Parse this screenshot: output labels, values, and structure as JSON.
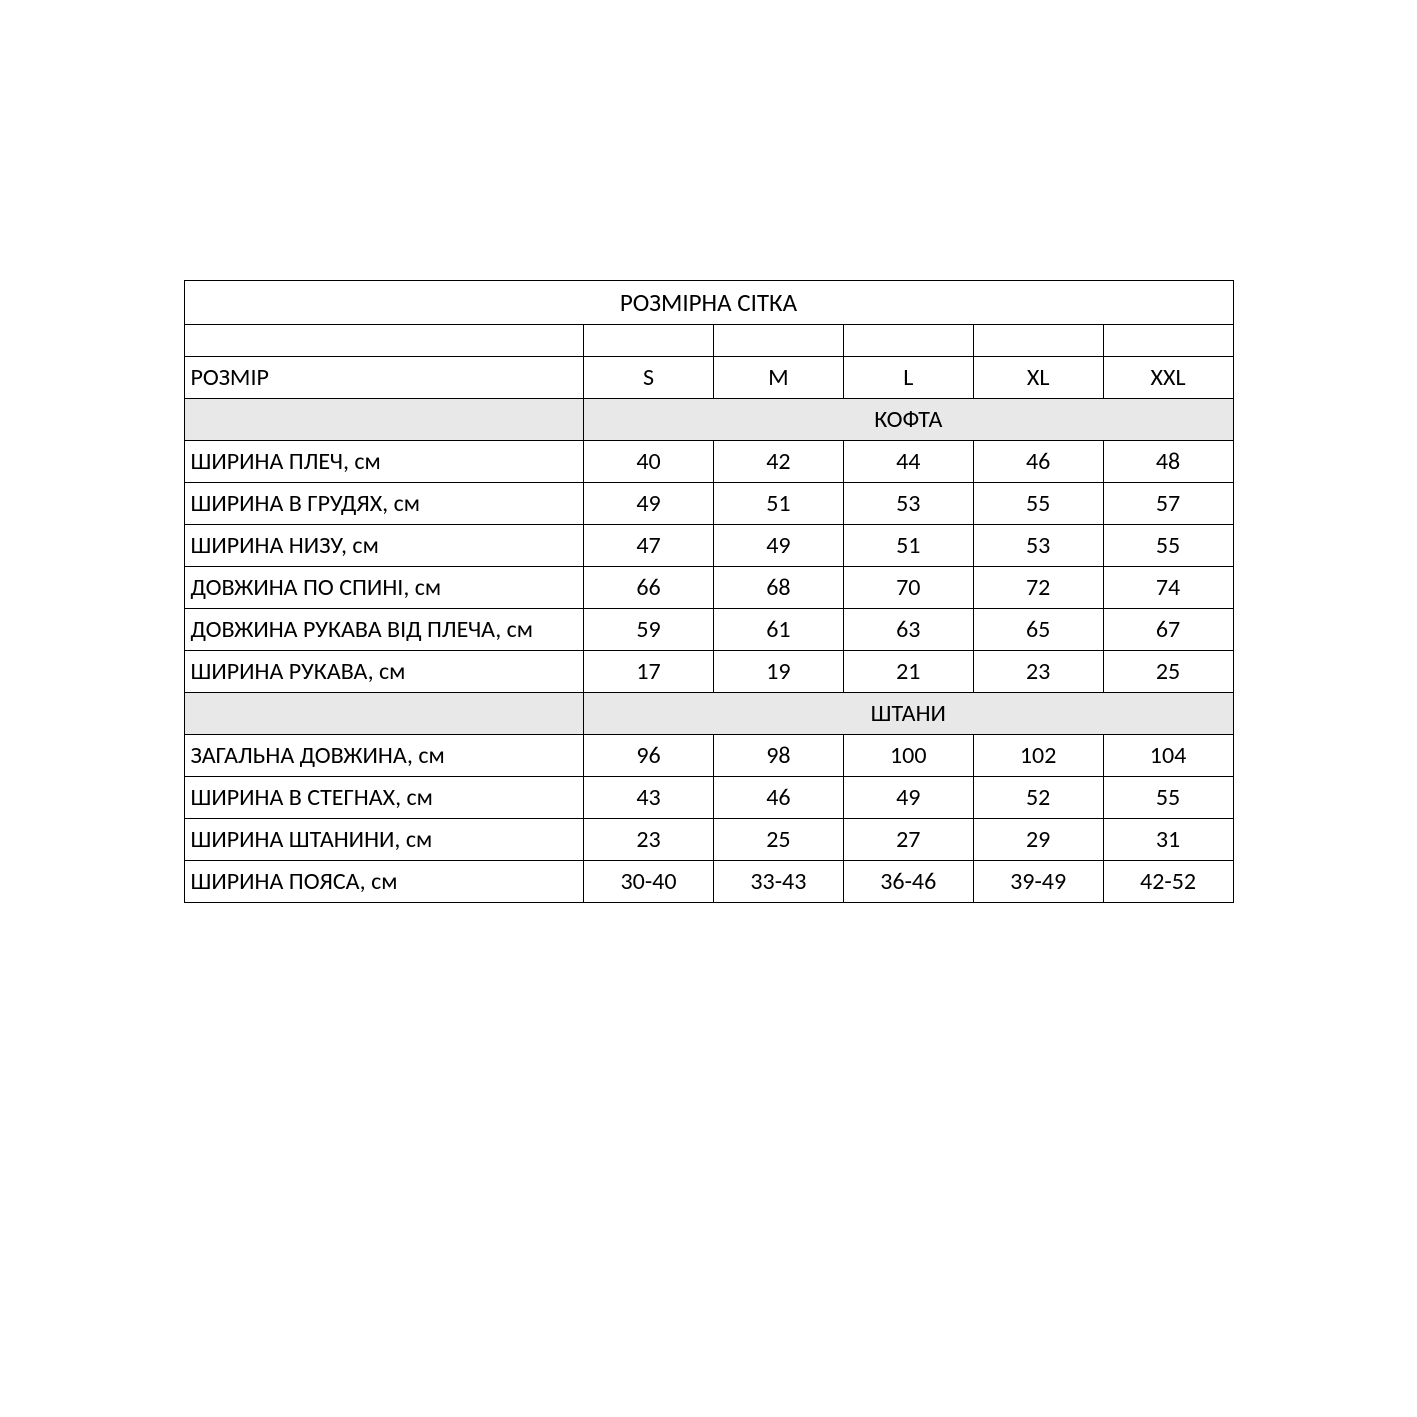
{
  "table": {
    "type": "table",
    "title": "РОЗМІРНА СІТКА",
    "size_label": "РОЗМІР",
    "sizes": [
      "S",
      "M",
      "L",
      "XL",
      "XXL"
    ],
    "sections": [
      {
        "name": "КОФТА",
        "rows": [
          {
            "label": " ШИРИНА ПЛЕЧ, см",
            "values": [
              "40",
              "42",
              "44",
              "46",
              "48"
            ]
          },
          {
            "label": "ШИРИНА В ГРУДЯХ, см",
            "values": [
              "49",
              "51",
              "53",
              "55",
              "57"
            ]
          },
          {
            "label": "ШИРИНА НИЗУ, см",
            "values": [
              "47",
              "49",
              "51",
              "53",
              "55"
            ]
          },
          {
            "label": "ДОВЖИНА ПО СПИНІ, см",
            "values": [
              "66",
              "68",
              "70",
              "72",
              "74"
            ]
          },
          {
            "label": "ДОВЖИНА РУКАВА ВІД ПЛЕЧА, см",
            "values": [
              "59",
              "61",
              "63",
              "65",
              "67"
            ]
          },
          {
            "label": "ШИРИНА РУКАВА, см",
            "values": [
              "17",
              "19",
              "21",
              "23",
              "25"
            ]
          }
        ]
      },
      {
        "name": "ШТАНИ",
        "rows": [
          {
            "label": "ЗАГАЛЬНА ДОВЖИНА, см",
            "values": [
              "96",
              "98",
              "100",
              "102",
              "104"
            ]
          },
          {
            "label": "ШИРИНА В СТЕГНАХ, см",
            "values": [
              "43",
              "46",
              "49",
              "52",
              "55"
            ]
          },
          {
            "label": "ШИРИНА ШТАНИНИ, см",
            "values": [
              "23",
              "25",
              "27",
              "29",
              "31"
            ]
          },
          {
            "label": "ШИРИНА ПОЯСА, см",
            "values": [
              "30-40",
              "33-43",
              "36-46",
              "39-49",
              "42-52"
            ]
          }
        ]
      }
    ],
    "colors": {
      "background": "#ffffff",
      "border": "#000000",
      "section_bg": "#e8e8e8",
      "text": "#000000"
    },
    "font_family": "Calibri",
    "title_fontsize": 25,
    "cell_fontsize": 24,
    "column_widths": {
      "label": 400,
      "value": 130
    }
  }
}
